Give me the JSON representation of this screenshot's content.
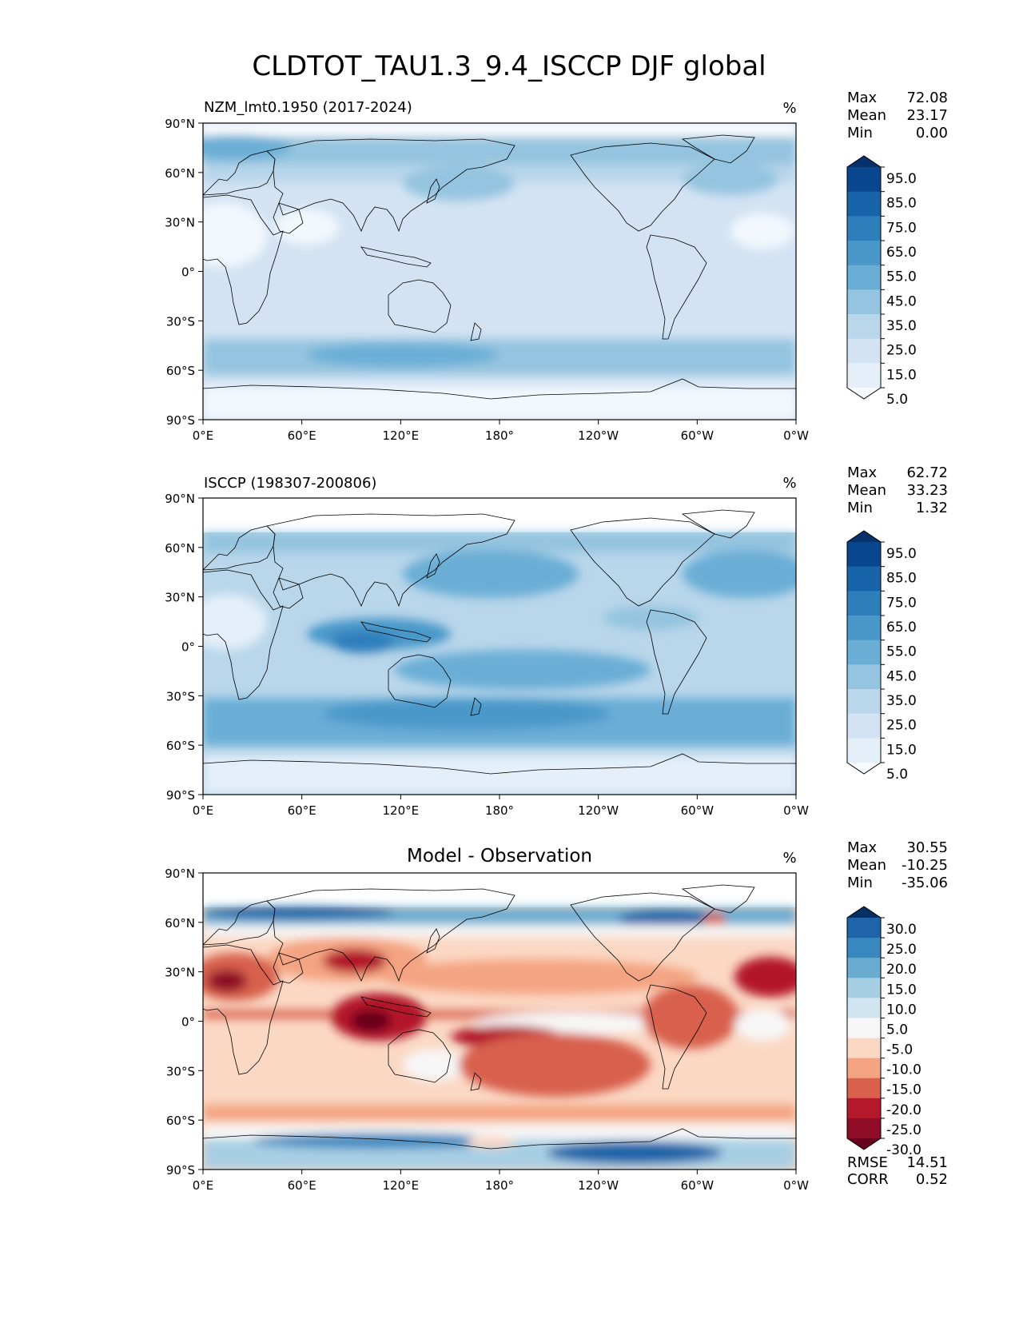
{
  "title": "CLDTOT_TAU1.3_9.4_ISCCP DJF global",
  "lat_ticks": [
    "90°N",
    "60°N",
    "30°N",
    "0°",
    "30°S",
    "60°S",
    "90°S"
  ],
  "lon_ticks": [
    "0°E",
    "60°E",
    "120°E",
    "180°",
    "120°W",
    "60°W",
    "0°W"
  ],
  "panels": [
    {
      "id": "model",
      "left_title": "NZM_lmt0.1950 (2017-2024)",
      "center_title": "",
      "units": "%",
      "stats": [
        {
          "label": "Max",
          "value": "72.08"
        },
        {
          "label": "Mean",
          "value": "23.17"
        },
        {
          "label": "Min",
          "value": "0.00"
        }
      ],
      "colorbar_labels": [
        "95.0",
        "85.0",
        "75.0",
        "65.0",
        "55.0",
        "45.0",
        "35.0",
        "25.0",
        "15.0",
        "5.0"
      ],
      "colorbar_colors": [
        "#08306b",
        "#08468e",
        "#1764ab",
        "#2e7ebc",
        "#4a98c9",
        "#6aaed6",
        "#94c4df",
        "#b9d6ea",
        "#d3e3f3",
        "#e4eff9",
        "#f7fbff"
      ],
      "field_colors": {
        "land_dry": "#f3f8fd",
        "base": "#d3e3f3",
        "mid": "#b9d6ea",
        "storm": "#94c4df",
        "dark": "#6aaed6",
        "deep": "#4a98c9"
      }
    },
    {
      "id": "obs",
      "left_title": "ISCCP (198307-200806)",
      "center_title": "",
      "units": "%",
      "stats": [
        {
          "label": "Max",
          "value": "62.72"
        },
        {
          "label": "Mean",
          "value": "33.23"
        },
        {
          "label": "Min",
          "value": "1.32"
        }
      ],
      "colorbar_labels": [
        "95.0",
        "85.0",
        "75.0",
        "65.0",
        "55.0",
        "45.0",
        "35.0",
        "25.0",
        "15.0",
        "5.0"
      ],
      "colorbar_colors": [
        "#08306b",
        "#08468e",
        "#1764ab",
        "#2e7ebc",
        "#4a98c9",
        "#6aaed6",
        "#94c4df",
        "#b9d6ea",
        "#d3e3f3",
        "#e4eff9",
        "#f7fbff"
      ],
      "field_colors": {
        "land_dry": "#e4eff9",
        "base": "#b9d6ea",
        "mid": "#94c4df",
        "storm": "#6aaed6",
        "dark": "#4a98c9",
        "deep": "#2e7ebc"
      }
    },
    {
      "id": "diff",
      "left_title": "",
      "center_title": "Model - Observation",
      "units": "%",
      "stats": [
        {
          "label": "Max",
          "value": "30.55"
        },
        {
          "label": "Mean",
          "value": "-10.25"
        },
        {
          "label": "Min",
          "value": "-35.06"
        }
      ],
      "colorbar_labels": [
        "30.0",
        "25.0",
        "20.0",
        "15.0",
        "10.0",
        "5.0",
        "-5.0",
        "-10.0",
        "-15.0",
        "-20.0",
        "-25.0",
        "-30.0"
      ],
      "colorbar_colors": [
        "#053061",
        "#1f63a8",
        "#3a88c0",
        "#6aacd0",
        "#a7cfe4",
        "#d1e5f0",
        "#f7f7f7",
        "#fbd8c4",
        "#f4a482",
        "#d8604d",
        "#b3182b",
        "#8e0c25",
        "#67001f"
      ],
      "extra_stats": [
        {
          "label": "RMSE",
          "value": "14.51"
        },
        {
          "label": "CORR",
          "value": "0.52"
        }
      ]
    }
  ]
}
